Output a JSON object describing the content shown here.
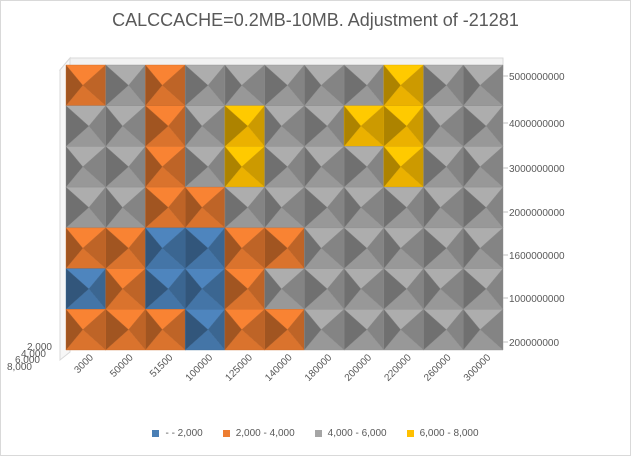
{
  "chart_data": {
    "type": "surface",
    "title": "CALCCACHE=0.2MB-10MB. Adjustment of -21281",
    "categories": [
      "3000",
      "50000",
      "51500",
      "100000",
      "125000",
      "140000",
      "180000",
      "200000",
      "220000",
      "260000",
      "300000"
    ],
    "y_ticks": [
      "200000000",
      "1000000000",
      "1600000000",
      "2000000000",
      "3000000000",
      "4000000000",
      "5000000000"
    ],
    "depth_ticks": [
      "2,000",
      "4,000",
      "6,000",
      "8,000"
    ],
    "legend": [
      {
        "label": "-  - 2,000",
        "color": "#4a7fb5"
      },
      {
        "label": "2,000 - 4,000",
        "color": "#ed7d31"
      },
      {
        "label": "4,000 - 6,000",
        "color": "#a5a5a5"
      },
      {
        "label": "6,000 - 8,000",
        "color": "#ffc000"
      }
    ],
    "bands": [
      "-  - 2,000",
      "2,000 - 4,000",
      "4,000 - 6,000",
      "6,000 - 8,000"
    ],
    "cells": [
      [
        "2,000 - 4,000",
        "4,000 - 6,000",
        "2,000 - 4,000",
        "4,000 - 6,000",
        "4,000 - 6,000",
        "4,000 - 6,000",
        "4,000 - 6,000",
        "4,000 - 6,000",
        "6,000 - 8,000",
        "4,000 - 6,000",
        "4,000 - 6,000"
      ],
      [
        "4,000 - 6,000",
        "4,000 - 6,000",
        "2,000 - 4,000",
        "4,000 - 6,000",
        "6,000 - 8,000",
        "4,000 - 6,000",
        "4,000 - 6,000",
        "6,000 - 8,000",
        "6,000 - 8,000",
        "4,000 - 6,000",
        "4,000 - 6,000"
      ],
      [
        "4,000 - 6,000",
        "4,000 - 6,000",
        "2,000 - 4,000",
        "4,000 - 6,000",
        "6,000 - 8,000",
        "4,000 - 6,000",
        "4,000 - 6,000",
        "4,000 - 6,000",
        "6,000 - 8,000",
        "4,000 - 6,000",
        "4,000 - 6,000"
      ],
      [
        "4,000 - 6,000",
        "4,000 - 6,000",
        "2,000 - 4,000",
        "2,000 - 4,000",
        "4,000 - 6,000",
        "4,000 - 6,000",
        "4,000 - 6,000",
        "4,000 - 6,000",
        "4,000 - 6,000",
        "4,000 - 6,000",
        "4,000 - 6,000"
      ],
      [
        "2,000 - 4,000",
        "2,000 - 4,000",
        "-  - 2,000",
        "-  - 2,000",
        "2,000 - 4,000",
        "2,000 - 4,000",
        "4,000 - 6,000",
        "4,000 - 6,000",
        "4,000 - 6,000",
        "4,000 - 6,000",
        "4,000 - 6,000"
      ],
      [
        "-  - 2,000",
        "2,000 - 4,000",
        "-  - 2,000",
        "-  - 2,000",
        "2,000 - 4,000",
        "4,000 - 6,000",
        "4,000 - 6,000",
        "4,000 - 6,000",
        "4,000 - 6,000",
        "4,000 - 6,000",
        "4,000 - 6,000"
      ],
      [
        "2,000 - 4,000",
        "2,000 - 4,000",
        "2,000 - 4,000",
        "-  - 2,000",
        "2,000 - 4,000",
        "2,000 - 4,000",
        "4,000 - 6,000",
        "4,000 - 6,000",
        "4,000 - 6,000",
        "4,000 - 6,000",
        "4,000 - 6,000"
      ]
    ]
  }
}
